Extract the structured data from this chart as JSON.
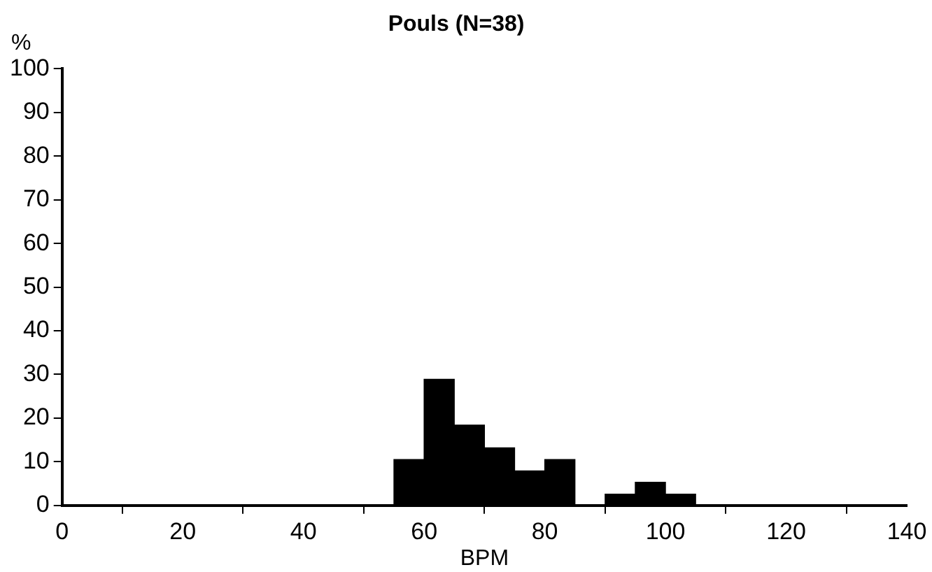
{
  "chart_data": {
    "type": "histogram",
    "title": "Pouls (N=38)",
    "xlabel": "BPM",
    "ylabel": "%",
    "bins": [
      55,
      60,
      65,
      70,
      75,
      80,
      85,
      90,
      95,
      100,
      105
    ],
    "values": [
      10.5,
      28.9,
      18.4,
      13.2,
      7.9,
      10.5,
      0,
      2.6,
      5.3,
      2.6
    ],
    "color": "#000000",
    "xlim": [
      0,
      140
    ],
    "xticks": [
      0,
      20,
      40,
      60,
      80,
      100,
      120,
      140
    ],
    "ylim": [
      0,
      100
    ],
    "yticks": [
      0,
      10,
      20,
      30,
      40,
      50,
      60,
      70,
      80,
      90,
      100
    ],
    "grid": false,
    "legend": false
  }
}
